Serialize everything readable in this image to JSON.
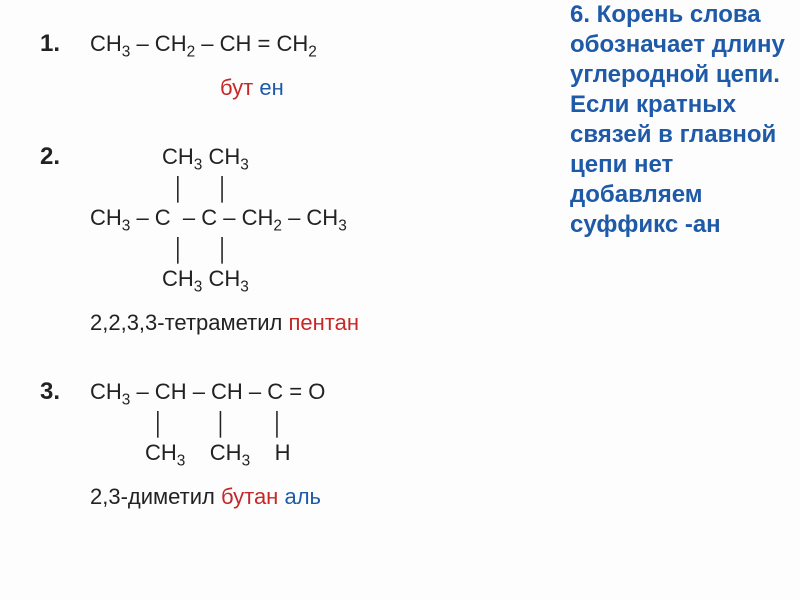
{
  "sidebar": {
    "text": "6. Корень слова обозначает длину углеродной цепи. Если кратных связей в главной цепи нет добавляем суффикс -ан",
    "color": "#1e5aa8",
    "fontsize": 24
  },
  "colors": {
    "text_default": "#222222",
    "root_highlight": "#c62828",
    "suffix_highlight": "#1e5aa8",
    "number_color": "#222222"
  },
  "fontsize": {
    "formula": 22,
    "number": 24,
    "name": 22
  },
  "examples": [
    {
      "number": "1.",
      "formula_lines": [
        {
          "indent": 0,
          "segments": [
            {
              "t": "СН",
              "sub": "3"
            },
            {
              "t": " – СН",
              "sub": "2"
            },
            {
              "t": " – СН = СН",
              "sub": "2"
            }
          ]
        }
      ],
      "name_indent": 130,
      "name_parts": [
        {
          "text": "бут",
          "color_key": "root_highlight"
        },
        {
          "text": "ен",
          "color_key": "suffix_highlight"
        }
      ]
    },
    {
      "number": "2.",
      "formula_lines": [
        {
          "indent": 72,
          "segments": [
            {
              "t": "СН",
              "sub": "3"
            },
            {
              "t": " СН",
              "sub": "3"
            }
          ]
        },
        {
          "indent": 82,
          "segments": [
            {
              "t": "│     │"
            }
          ]
        },
        {
          "indent": 0,
          "segments": [
            {
              "t": "СН",
              "sub": "3"
            },
            {
              "t": " – С  – С – СН",
              "sub": "2"
            },
            {
              "t": " – СН",
              "sub": "3"
            }
          ]
        },
        {
          "indent": 82,
          "segments": [
            {
              "t": "│     │"
            }
          ]
        },
        {
          "indent": 72,
          "segments": [
            {
              "t": "СН",
              "sub": "3"
            },
            {
              "t": " СН",
              "sub": "3"
            }
          ]
        }
      ],
      "name_indent": 0,
      "name_parts": [
        {
          "text": "2,2,3,3-тетраметил",
          "color_key": "text_default"
        },
        {
          "text": "пентан",
          "color_key": "root_highlight"
        }
      ]
    },
    {
      "number": "3.",
      "formula_lines": [
        {
          "indent": 0,
          "segments": [
            {
              "t": "СН",
              "sub": "3"
            },
            {
              "t": " – СН – СН – С = О"
            }
          ]
        },
        {
          "indent": 62,
          "segments": [
            {
              "t": "│        │       │"
            }
          ]
        },
        {
          "indent": 55,
          "segments": [
            {
              "t": "СН",
              "sub": "3"
            },
            {
              "t": "    СН",
              "sub": "3"
            },
            {
              "t": "    Н"
            }
          ]
        }
      ],
      "name_indent": 0,
      "name_parts": [
        {
          "text": "2,3-диметил",
          "color_key": "text_default"
        },
        {
          "text": "бутан",
          "color_key": "root_highlight"
        },
        {
          "text": " аль",
          "color_key": "suffix_highlight"
        }
      ]
    }
  ]
}
